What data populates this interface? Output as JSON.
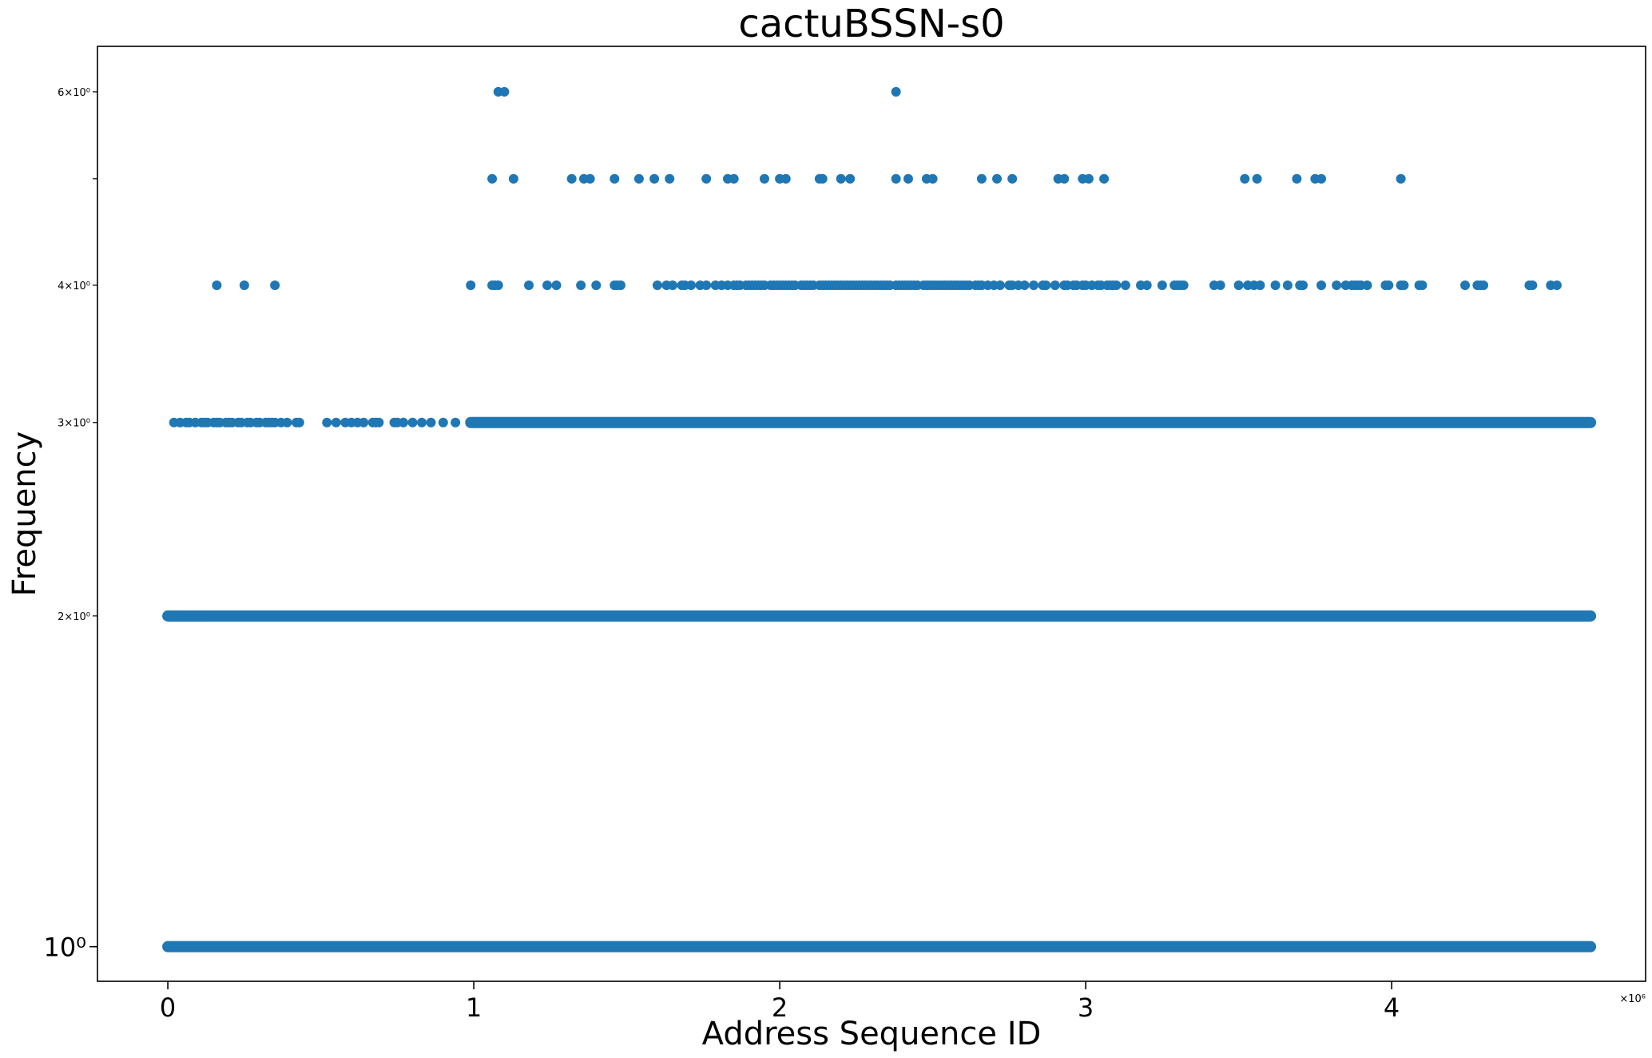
{
  "chart_data": {
    "type": "scatter",
    "title": "cactuBSSN-s0",
    "xlabel": "Address Sequence ID",
    "ylabel": "Frequency",
    "x_offset_label": "×10⁶",
    "xlim": [
      -0.23,
      4.83
    ],
    "ylim": [
      0.93,
      6.6
    ],
    "yscale": "log",
    "grid": false,
    "marker_color": "#1f77b4",
    "x_ticks": [
      {
        "value": 0,
        "label": "0"
      },
      {
        "value": 1,
        "label": "1"
      },
      {
        "value": 2,
        "label": "2"
      },
      {
        "value": 3,
        "label": "3"
      },
      {
        "value": 4,
        "label": "4"
      }
    ],
    "y_major_ticks": [
      {
        "value": 1,
        "label": "10⁰"
      }
    ],
    "y_minor_ticks": [
      {
        "value": 2,
        "label": "2×10⁰"
      },
      {
        "value": 3,
        "label": "3×10⁰"
      },
      {
        "value": 4,
        "label": "4×10⁰"
      },
      {
        "value": 5,
        "label": ""
      },
      {
        "value": 6,
        "label": "6×10⁰"
      }
    ],
    "dense_bands": [
      {
        "y": 1,
        "x_start": 0.0,
        "x_end": 4.65
      },
      {
        "y": 2,
        "x_start": 0.0,
        "x_end": 4.65
      },
      {
        "y": 3,
        "x_start": 0.99,
        "x_end": 4.65
      }
    ],
    "series": [
      {
        "y": 3,
        "x": [
          0.02,
          0.04,
          0.06,
          0.07,
          0.09,
          0.11,
          0.12,
          0.13,
          0.15,
          0.16,
          0.17,
          0.19,
          0.2,
          0.21,
          0.23,
          0.24,
          0.26,
          0.27,
          0.29,
          0.3,
          0.32,
          0.33,
          0.34,
          0.35,
          0.37,
          0.39,
          0.42,
          0.43,
          0.52,
          0.55,
          0.58,
          0.6,
          0.62,
          0.64,
          0.67,
          0.68,
          0.69,
          0.74,
          0.75,
          0.77,
          0.8,
          0.83,
          0.86,
          0.9,
          0.94
        ]
      },
      {
        "y": 4,
        "x": [
          0.16,
          0.25,
          0.35,
          0.99,
          1.06,
          1.07,
          1.08,
          1.18,
          1.24,
          1.27,
          1.35,
          1.4,
          1.46,
          1.47,
          1.48,
          1.6,
          1.63,
          1.65,
          1.68,
          1.69,
          1.71,
          1.74,
          1.76,
          1.79,
          1.81,
          1.83,
          1.85,
          1.86,
          1.87,
          1.89,
          1.9,
          1.91,
          1.92,
          1.93,
          1.94,
          1.95,
          1.97,
          1.98,
          1.99,
          2.0,
          2.01,
          2.02,
          2.03,
          2.04,
          2.05,
          2.07,
          2.08,
          2.09,
          2.1,
          2.11,
          2.13,
          2.14,
          2.15,
          2.16,
          2.17,
          2.18,
          2.19,
          2.2,
          2.21,
          2.22,
          2.23,
          2.24,
          2.25,
          2.26,
          2.27,
          2.28,
          2.29,
          2.3,
          2.31,
          2.32,
          2.33,
          2.34,
          2.35,
          2.36,
          2.38,
          2.39,
          2.4,
          2.41,
          2.42,
          2.43,
          2.44,
          2.45,
          2.47,
          2.48,
          2.49,
          2.5,
          2.51,
          2.52,
          2.53,
          2.54,
          2.55,
          2.56,
          2.57,
          2.58,
          2.59,
          2.6,
          2.61,
          2.62,
          2.64,
          2.65,
          2.66,
          2.68,
          2.7,
          2.72,
          2.75,
          2.76,
          2.78,
          2.8,
          2.83,
          2.86,
          2.87,
          2.9,
          2.93,
          2.94,
          2.96,
          2.97,
          2.99,
          3.0,
          3.02,
          3.04,
          3.05,
          3.07,
          3.08,
          3.09,
          3.1,
          3.13,
          3.18,
          3.2,
          3.25,
          3.29,
          3.3,
          3.31,
          3.32,
          3.42,
          3.44,
          3.5,
          3.53,
          3.55,
          3.57,
          3.62,
          3.66,
          3.7,
          3.71,
          3.77,
          3.82,
          3.85,
          3.87,
          3.88,
          3.89,
          3.9,
          3.92,
          3.98,
          3.99,
          4.03,
          4.04,
          4.09,
          4.1,
          4.24,
          4.28,
          4.29,
          4.3,
          4.45,
          4.46,
          4.52,
          4.54
        ]
      },
      {
        "y": 5,
        "x": [
          1.06,
          1.13,
          1.32,
          1.36,
          1.38,
          1.46,
          1.54,
          1.59,
          1.64,
          1.76,
          1.83,
          1.85,
          1.95,
          2.0,
          2.02,
          2.13,
          2.14,
          2.2,
          2.23,
          2.38,
          2.42,
          2.48,
          2.5,
          2.66,
          2.71,
          2.76,
          2.91,
          2.93,
          2.99,
          3.01,
          3.06,
          3.52,
          3.56,
          3.69,
          3.75,
          3.77,
          4.03
        ]
      },
      {
        "y": 6,
        "x": [
          1.08,
          1.1,
          2.38
        ]
      }
    ]
  }
}
